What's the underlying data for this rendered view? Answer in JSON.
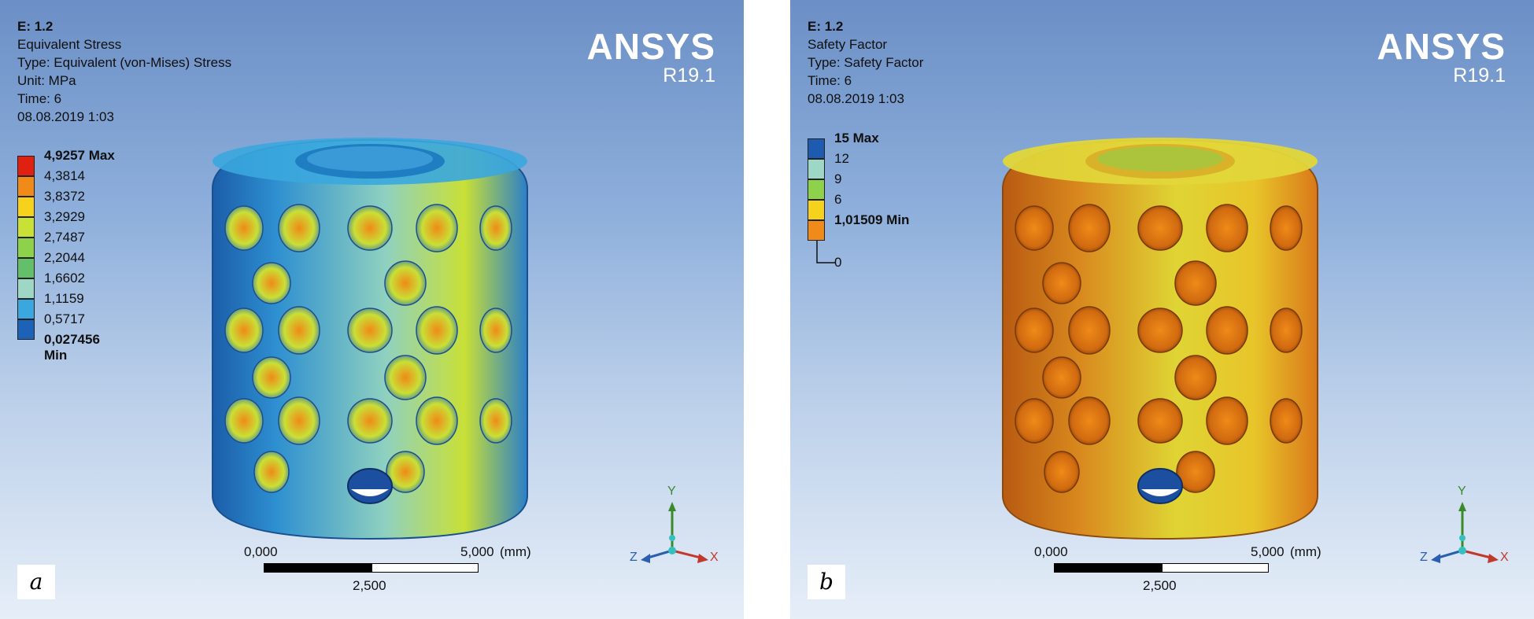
{
  "panel_a": {
    "info": [
      "E: 1.2",
      "Equivalent Stress",
      "Type: Equivalent (von-Mises) Stress",
      "Unit: MPa",
      "Time: 6",
      "08.08.2019 1:03"
    ],
    "brand": {
      "name": "ANSYS",
      "version": "R19.1"
    },
    "legend": {
      "labels": [
        "4,9257 Max",
        "4,3814",
        "3,8372",
        "3,2929",
        "2,7487",
        "2,2044",
        "1,6602",
        "1,1159",
        "0,5717",
        "0,027456 Min"
      ],
      "colors": [
        "#e02010",
        "#f08a18",
        "#f7d21c",
        "#c9e036",
        "#8ed14a",
        "#64bf6a",
        "#9fd7c7",
        "#3aa7de",
        "#1c62b8"
      ]
    },
    "scale": {
      "left": "0,000",
      "right": "5,000",
      "unit": "(mm)",
      "mid": "2,500"
    },
    "triad": {
      "y": "Y",
      "z": "Z",
      "x": "X"
    },
    "tag": "a"
  },
  "panel_b": {
    "info": [
      "E: 1.2",
      "Safety Factor",
      "Type: Safety Factor",
      "Time: 6",
      "08.08.2019 1:03"
    ],
    "brand": {
      "name": "ANSYS",
      "version": "R19.1"
    },
    "legend": {
      "labels": [
        "15 Max",
        "12",
        "9",
        "6",
        "1,01509 Min",
        "0"
      ],
      "colors": [
        "#1c5bb0",
        "#9fd7c7",
        "#8ed14a",
        "#f7d21c",
        "#f08a18"
      ]
    },
    "scale": {
      "left": "0,000",
      "right": "5,000",
      "unit": "(mm)",
      "mid": "2,500"
    },
    "triad": {
      "y": "Y",
      "z": "Z",
      "x": "X"
    },
    "tag": "b"
  }
}
